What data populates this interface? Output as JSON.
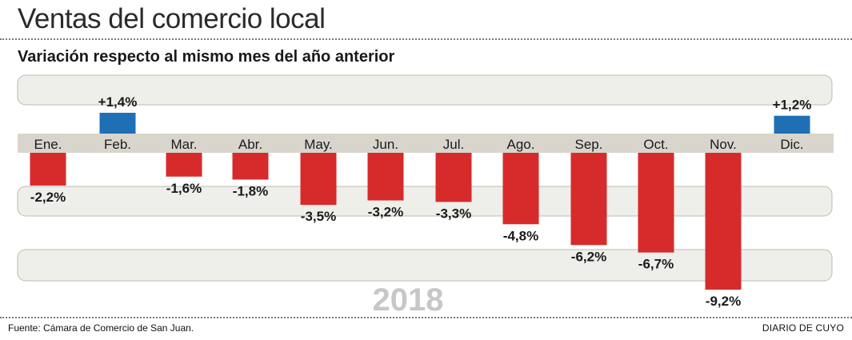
{
  "title": "Ventas del comercio local",
  "subtitle": "Variación respecto al mismo mes del año anterior",
  "source": "Fuente: Cámara de Comercio de San Juan.",
  "credit": "DIARIO DE CUYO",
  "colors": {
    "positive": "#1f6fb5",
    "negative": "#d72b2b",
    "band": "#eeeeea",
    "axis_band": "#d8d6cc",
    "year": "#c7c7c7"
  },
  "chart_data": {
    "type": "bar",
    "title": "Ventas del comercio local",
    "subtitle": "Variación respecto al mismo mes del año anterior",
    "year_label": "2018",
    "categories": [
      "Ene.",
      "Feb.",
      "Mar.",
      "Abr.",
      "May.",
      "Jun.",
      "Jul.",
      "Ago.",
      "Sep.",
      "Oct.",
      "Nov.",
      "Dic."
    ],
    "values": [
      -2.2,
      1.4,
      -1.6,
      -1.8,
      -3.5,
      -3.2,
      -3.3,
      -4.8,
      -6.2,
      -6.7,
      -9.2,
      1.2
    ],
    "value_labels": [
      "-2,2%",
      "+1,4%",
      "-1,6%",
      "-1,8%",
      "-3,5%",
      "-3,2%",
      "-3,3%",
      "-4,8%",
      "-6,2%",
      "-6,7%",
      "-9,2%",
      "+1,2%"
    ],
    "unit": "%",
    "xlabel": "",
    "ylabel": "",
    "ylim": [
      -9.2,
      1.4
    ]
  }
}
